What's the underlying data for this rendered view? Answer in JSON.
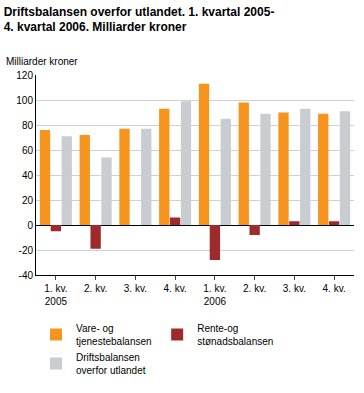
{
  "chart_data": {
    "type": "bar",
    "title": "Driftsbalansen overfor utlandet. 1. kvartal 2005-\n4. kvartal 2006. Milliarder kroner",
    "y_label": "Milliarder kroner",
    "categories": [
      "1. kv.\n2005",
      "2. kv.",
      "3. kv.",
      "4. kv.",
      "1. kv.\n2006",
      "2. kv.",
      "3. kv.",
      "4. kv."
    ],
    "series": [
      {
        "name": "Vare- og\ntjenestebalansen",
        "color": "#f7941d",
        "values": [
          76,
          72,
          77,
          93,
          113,
          98,
          90,
          89
        ]
      },
      {
        "name": "Rente-og\nstønadsbalansen",
        "color": "#9e2a2b",
        "values": [
          -5,
          -19,
          0,
          6,
          -28,
          -8,
          3,
          3
        ]
      },
      {
        "name": "Driftsbalansen\noverfor utlandet",
        "color": "#c9cdd1",
        "values": [
          71,
          54,
          77,
          99,
          85,
          89,
          93,
          91
        ]
      }
    ],
    "ylim": [
      -40,
      120
    ],
    "yticks": [
      -40,
      -20,
      0,
      20,
      40,
      60,
      80,
      100,
      120
    ],
    "grid": true,
    "legend": "bottom"
  }
}
